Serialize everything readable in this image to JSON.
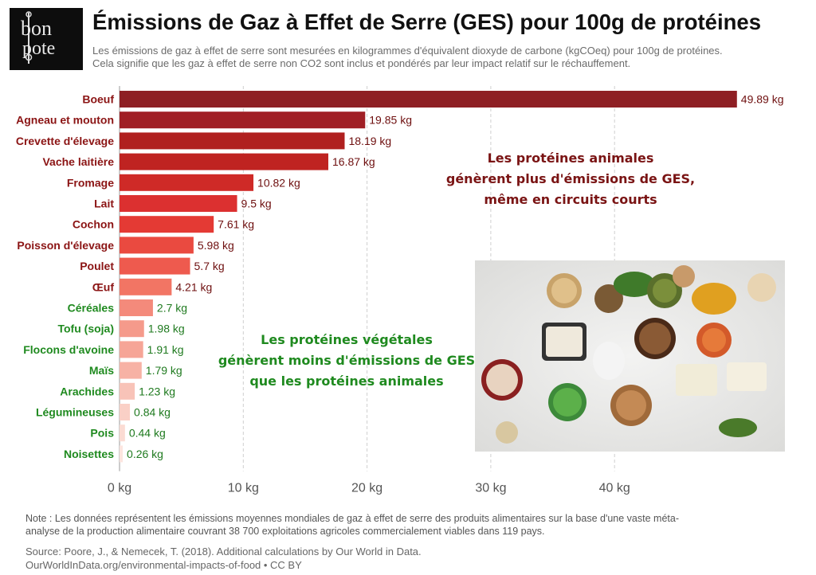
{
  "logo": {
    "text_top": "bon",
    "text_bottom": "pote"
  },
  "title": "Émissions de Gaz à Effet de Serre (GES) pour 100g de protéines",
  "subtitle_line1": "Les émissions de gaz à effet de serre sont mesurées en kilogrammes d'équivalent dioxyde de carbone (kgCOeq) pour 100g de protéines.",
  "subtitle_line2": "Cela signifie que les gaz à effet de serre non CO2 sont inclus et pondérés par leur impact relatif sur le réchauffement.",
  "annotations": {
    "animal": [
      "Les protéines animales",
      "génèrent plus d'émissions de GES,",
      "même en circuits courts"
    ],
    "vegetal": [
      "Les protéines végétales",
      "génèrent moins d'émissions de GES",
      "que les protéines animales"
    ]
  },
  "note_line1": "Note : Les données représentent les émissions moyennes mondiales de gaz à effet de serre des produits alimentaires sur la base d'une vaste méta-",
  "note_line2": "analyse de la production alimentaire couvrant 38 700 exploitations agricoles commercialement viables dans 119 pays.",
  "source_line1": "Source: Poore, J., & Nemecek, T. (2018). Additional calculations by Our World in Data.",
  "source_line2": "OurWorldInData.org/environmental-impacts-of-food • CC BY",
  "colors": {
    "animal_label": "#8b1414",
    "vegetal_label": "#1f8a1f",
    "value_label_animal": "#6e0f0f",
    "value_label_vegetal": "#1f7a1f"
  },
  "chart_data": {
    "type": "bar",
    "orientation": "horizontal",
    "categories": [
      "Boeuf",
      "Agneau et mouton",
      "Crevette d'élevage",
      "Vache laitière",
      "Fromage",
      "Lait",
      "Cochon",
      "Poisson d'élevage",
      "Poulet",
      "Œuf",
      "Céréales",
      "Tofu (soja)",
      "Flocons d'avoine",
      "Maïs",
      "Arachides",
      "Légumineuses",
      "Pois",
      "Noisettes"
    ],
    "values": [
      49.89,
      19.85,
      18.19,
      16.87,
      10.82,
      9.5,
      7.61,
      5.98,
      5.7,
      4.21,
      2.7,
      1.98,
      1.91,
      1.79,
      1.23,
      0.84,
      0.44,
      0.26
    ],
    "value_labels": [
      "49.89 kg",
      "19.85 kg",
      "18.19 kg",
      "16.87 kg",
      "10.82 kg",
      "9.5 kg",
      "7.61 kg",
      "5.98 kg",
      "5.7 kg",
      "4.21 kg",
      "2.7 kg",
      "1.98 kg",
      "1.91 kg",
      "1.79 kg",
      "1.23 kg",
      "0.84 kg",
      "0.44 kg",
      "0.26 kg"
    ],
    "groups": [
      "animal",
      "animal",
      "animal",
      "animal",
      "animal",
      "animal",
      "animal",
      "animal",
      "animal",
      "animal",
      "vegetal",
      "vegetal",
      "vegetal",
      "vegetal",
      "vegetal",
      "vegetal",
      "vegetal",
      "vegetal"
    ],
    "bar_colors": [
      "#8e1f24",
      "#a01f25",
      "#b0201f",
      "#bf2321",
      "#cf2a27",
      "#dc3030",
      "#e43a34",
      "#ea4a40",
      "#ee5a4e",
      "#f27564",
      "#f48a7b",
      "#f59a8b",
      "#f6a597",
      "#f7b2a5",
      "#f8c3b8",
      "#fad0c6",
      "#fbdbd3",
      "#fce5df"
    ],
    "xticks": [
      0,
      10,
      20,
      30,
      40
    ],
    "xtick_labels": [
      "0 kg",
      "10 kg",
      "20 kg",
      "30 kg",
      "40 kg"
    ],
    "xlim": [
      0,
      52
    ],
    "grid": true,
    "title": "Émissions de Gaz à Effet de Serre (GES) pour 100g de protéines",
    "xlabel": "",
    "ylabel": ""
  }
}
